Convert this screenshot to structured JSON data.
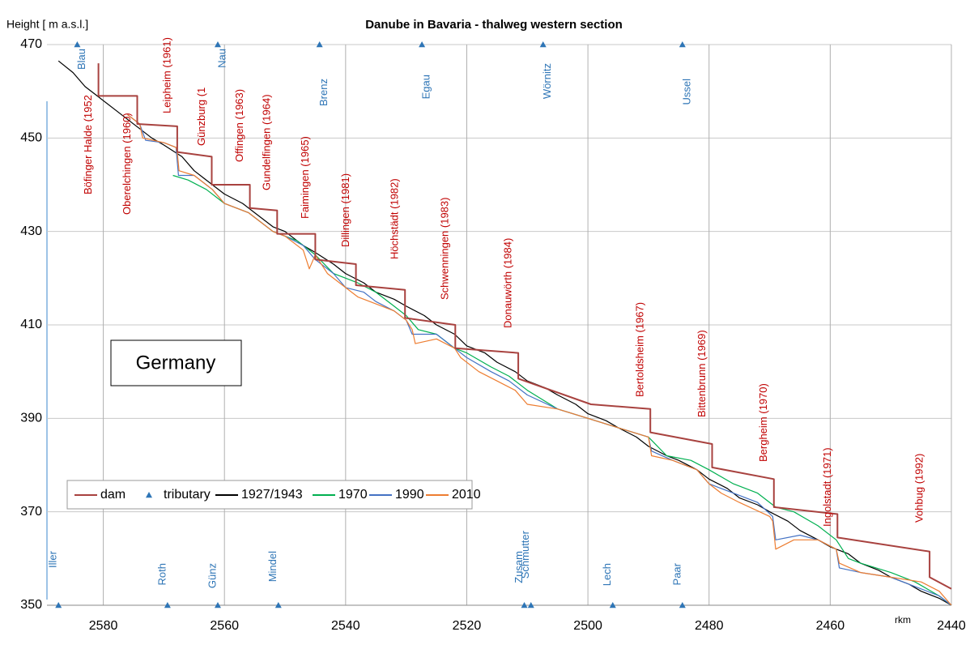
{
  "chart_data": {
    "type": "line",
    "title": "Danube in Bavaria - thalweg western section",
    "y_label": "Height [ m a.s.l.]",
    "x_label": "rkm",
    "annotation": "Germany",
    "xlim": [
      2589.3,
      2440
    ],
    "xticks": [
      2580,
      2560,
      2540,
      2520,
      2500,
      2480,
      2460,
      2440
    ],
    "ylim": [
      350,
      470
    ],
    "yticks": [
      350,
      370,
      390,
      410,
      430,
      450,
      470
    ],
    "grid": true,
    "legend": "lower left",
    "series": [
      {
        "name": "dam",
        "color": "#a8423f",
        "x": [
          2580.8,
          2580.8,
          2574.4,
          2574.4,
          2567.8,
          2567.8,
          2562.1,
          2562.1,
          2555.8,
          2555.8,
          2551.3,
          2551.3,
          2545,
          2545,
          2538.3,
          2538.3,
          2530.2,
          2530.2,
          2521.9,
          2521.9,
          2511.5,
          2511.5,
          2499.5,
          2489.7,
          2489.7,
          2479.5,
          2479.5,
          2469.3,
          2469.3,
          2458.8,
          2458.8,
          2443.6,
          2443.6,
          2440
        ],
        "values": [
          466,
          459,
          459,
          453,
          452.5,
          447,
          446,
          440,
          440,
          435,
          434.5,
          429.5,
          429.5,
          424,
          423,
          418.5,
          417.5,
          411.5,
          410,
          405,
          404,
          398.5,
          393,
          392,
          387,
          384.5,
          379.5,
          377,
          371,
          369.5,
          364.5,
          361.5,
          356,
          353.5
        ]
      },
      {
        "name": "tributary",
        "color": "#2e75b6",
        "x": [
          2584.3,
          2561.1,
          2544.3,
          2527.4,
          2507.4,
          2484.4,
          2587.4,
          2569.4,
          2561.1,
          2551.1,
          2510.5,
          2509.4,
          2495.9,
          2484.4
        ],
        "values": [
          470,
          470,
          470,
          470,
          470,
          470,
          350,
          350,
          350,
          350,
          350,
          350,
          350,
          350
        ],
        "labels": [
          "Blau",
          "Nau",
          "Brenz",
          "Egau",
          "Wörnitz",
          "Ussel",
          "Iller",
          "Roth",
          "Günz",
          "Mindel",
          "Zusam",
          "Schmutter",
          "Lech",
          "Paar"
        ]
      },
      {
        "name": "1927/1943",
        "color": "#000000",
        "x": [
          2587.4,
          2585,
          2583,
          2581,
          2578,
          2576,
          2574,
          2572,
          2570,
          2567,
          2565,
          2562,
          2560,
          2557,
          2555,
          2552,
          2550,
          2547,
          2545,
          2542,
          2540,
          2537,
          2535,
          2532,
          2530,
          2527,
          2525,
          2522,
          2520,
          2517,
          2515,
          2512,
          2510,
          2507,
          2505,
          2502,
          2500,
          2497,
          2495,
          2492,
          2490,
          2487,
          2485,
          2482,
          2480,
          2477,
          2475,
          2472,
          2470,
          2467,
          2465,
          2462,
          2460,
          2457,
          2455,
          2452,
          2450,
          2447,
          2445,
          2442,
          2440
        ],
        "values": [
          466.5,
          464,
          461,
          459,
          456,
          454,
          452,
          450,
          448.5,
          446,
          443,
          440,
          438,
          436,
          434,
          431,
          430,
          427,
          425.5,
          423,
          421,
          419,
          417,
          415.5,
          414,
          412,
          410,
          408,
          405.5,
          404,
          402,
          400,
          398,
          396.5,
          395,
          393,
          391,
          389.5,
          388,
          386,
          384,
          382,
          381,
          379,
          377,
          375,
          373,
          371.5,
          370,
          368,
          366,
          364,
          362.5,
          361,
          359,
          357.5,
          356,
          354.5,
          353,
          351.5,
          350
        ]
      },
      {
        "name": "1970",
        "color": "#00b050",
        "x": [
          2568.5,
          2566,
          2563,
          2560,
          2556,
          2552,
          2548,
          2545,
          2542,
          2538,
          2535,
          2532,
          2530,
          2528,
          2525,
          2522,
          2520,
          2516,
          2513,
          2510,
          2505,
          2500,
          2495,
          2490,
          2487,
          2483,
          2480,
          2476,
          2472,
          2469,
          2466,
          2462,
          2459,
          2457,
          2455,
          2450,
          2446,
          2442,
          2440
        ],
        "values": [
          442,
          441,
          439,
          436,
          434,
          430,
          428,
          425,
          421,
          419,
          417,
          414,
          412,
          409,
          408,
          405,
          404,
          401,
          399,
          396,
          392,
          390,
          388,
          386,
          382,
          381,
          379,
          376,
          374,
          371,
          370,
          367,
          364,
          360,
          359,
          357,
          355,
          352,
          350
        ]
      },
      {
        "name": "1990",
        "color": "#4472c4",
        "x": [
          2576,
          2574,
          2573,
          2570,
          2568,
          2567.6,
          2565,
          2562,
          2560,
          2556,
          2552,
          2550,
          2547,
          2545,
          2542,
          2540,
          2537,
          2535,
          2532,
          2530,
          2529,
          2525,
          2522,
          2520,
          2516,
          2513,
          2510,
          2505,
          2500,
          2495,
          2490,
          2489.5,
          2486,
          2482,
          2480,
          2476,
          2472,
          2469.5,
          2469,
          2465,
          2462,
          2459,
          2458.5,
          2455,
          2450,
          2446,
          2442,
          2440
        ],
        "values": [
          455,
          453,
          449.5,
          449,
          448,
          442,
          442,
          439,
          436,
          434,
          430,
          429,
          427,
          424,
          421,
          418,
          417,
          415,
          413,
          411,
          408,
          408,
          405,
          403,
          400,
          398,
          395,
          392,
          390,
          388,
          386,
          383,
          381,
          379,
          376,
          374,
          372,
          369,
          364,
          365,
          364,
          362,
          358,
          357,
          356,
          354,
          352,
          350
        ]
      },
      {
        "name": "2010",
        "color": "#ed7d31",
        "x": [
          2576,
          2574,
          2573.5,
          2570,
          2568,
          2567.8,
          2567.5,
          2565,
          2562,
          2560,
          2556,
          2552,
          2550,
          2547,
          2546,
          2545,
          2543,
          2540,
          2538,
          2536,
          2532,
          2530,
          2529,
          2528.5,
          2525,
          2522,
          2521,
          2518,
          2515,
          2512,
          2510,
          2505,
          2500,
          2495,
          2490,
          2489.5,
          2486,
          2482,
          2480,
          2478,
          2475,
          2470,
          2469.5,
          2469,
          2466,
          2462,
          2459,
          2458.5,
          2455,
          2450,
          2445,
          2442,
          2440
        ],
        "values": [
          455,
          453,
          450,
          449,
          448,
          447,
          443,
          442,
          439,
          436,
          434,
          430,
          429,
          426,
          422,
          425,
          421,
          418,
          416,
          415,
          413,
          411,
          409,
          406,
          407,
          405,
          403,
          400,
          398,
          396,
          393,
          392,
          390,
          388,
          386,
          382,
          381,
          379,
          376,
          374,
          372,
          369,
          368,
          362,
          364,
          364,
          362,
          359,
          357,
          356,
          355,
          353,
          350
        ]
      }
    ],
    "dam_labels": [
      "Böfinger Halde (1952",
      "Oberelchingen (1960)",
      "Leipheim (1961)",
      "Günzburg (1",
      "Offingen (1963)",
      "Gundelfingen (1964)",
      "Faimingen (1965)",
      "Dillingen (1981)",
      "Höchstädt (1982)",
      "Schwenningen (1983)",
      "Donauwörth (1984)",
      "Bertoldsheim (1967)",
      "Bittenbrunn (1969)",
      "Bergheim (1970)",
      "Ingolstadt (1971)",
      "Vohbug (1992)"
    ]
  }
}
